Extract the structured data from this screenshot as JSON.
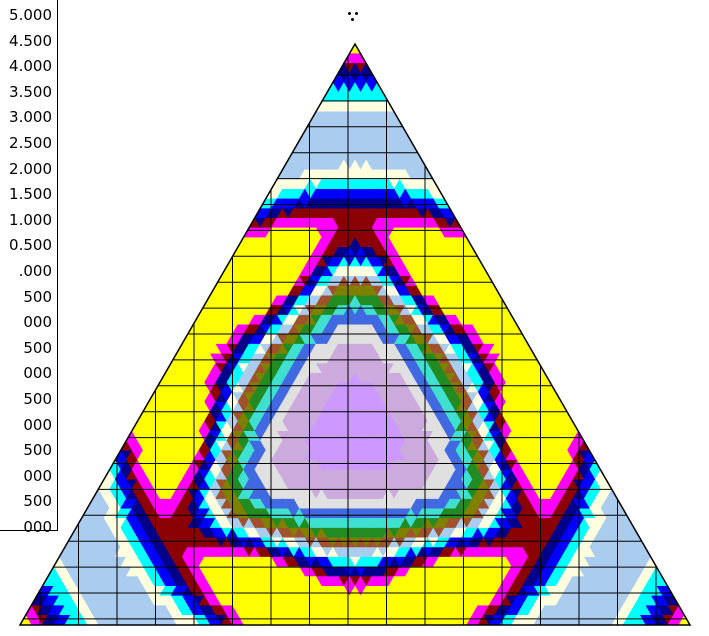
{
  "chart_data": {
    "type": "heatmap",
    "subtype": "ternary filled contour",
    "title": "",
    "legend": {
      "placement": "top-left",
      "tick_labels": [
        "5.000",
        "4.500",
        "4.000",
        "3.500",
        "3.000",
        "2.500",
        "2.000",
        "1.500",
        "1.000",
        "0.500",
        ".000",
        "500",
        "000",
        "500",
        "000",
        "500",
        "000",
        "500",
        "000",
        "500",
        "000"
      ]
    },
    "grid": true,
    "symmetry": "threefold",
    "color_levels": [
      "#ffff00",
      "#ff00ff",
      "#8b0000",
      "#00008b",
      "#0000ff",
      "#00ffff",
      "#f5f5dc",
      "#ffffe0",
      "#aaccee",
      "#ccaadd",
      "#cc99ff",
      "#e0e0e0",
      "#4169e1",
      "#40e0d0",
      "#228b22",
      "#808000",
      "#a0522d"
    ]
  }
}
